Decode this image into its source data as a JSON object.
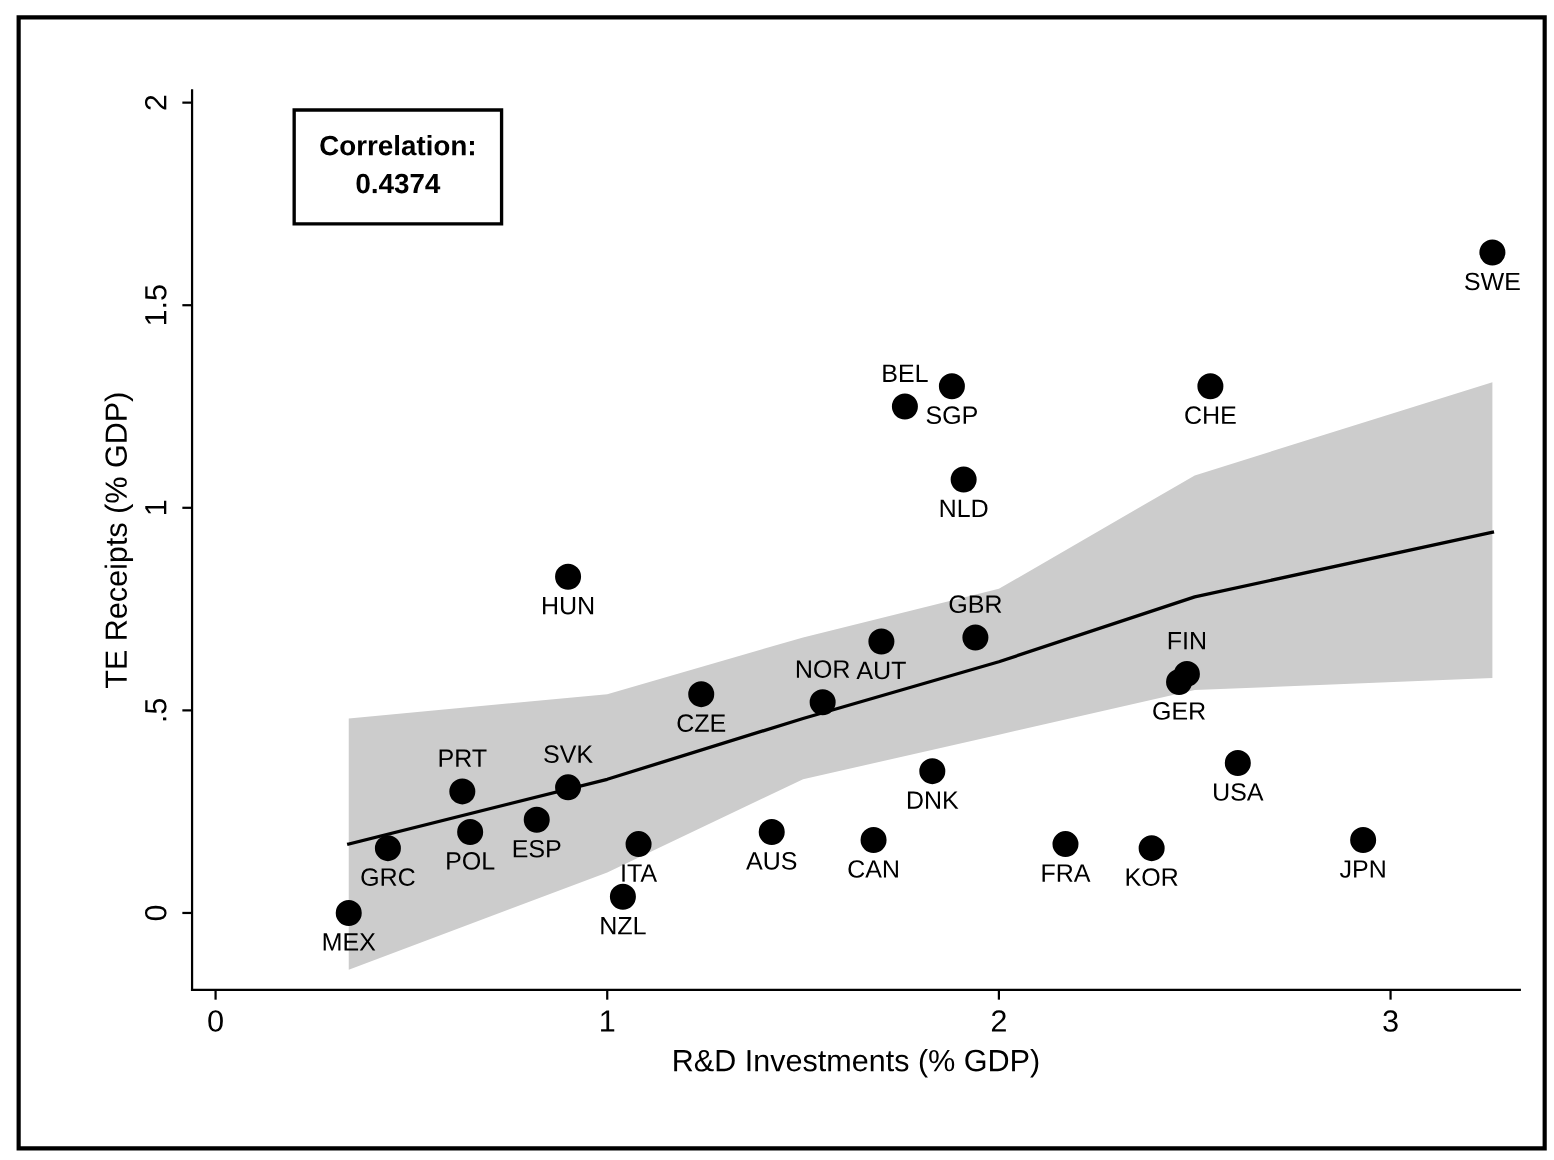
{
  "chart_data": {
    "type": "scatter",
    "xlabel": "R&D Investments (% GDP)",
    "ylabel": "TE Receipts (% GDP)",
    "annotations": [
      "Correlation:\n0.4374"
    ],
    "xlim": [
      -0.06,
      3.33
    ],
    "ylim": [
      -0.19,
      2.03
    ],
    "xticks": [
      0,
      1,
      2,
      3
    ],
    "yticks": [
      0,
      {
        "value": 0.5,
        "label": ".5"
      },
      1,
      1.5,
      2
    ],
    "grid": false,
    "legend": false,
    "marker": "circle",
    "series": [
      {
        "color": "#000000",
        "x": [
          0.34,
          0.44,
          0.63,
          0.65,
          0.82,
          0.9,
          0.9,
          1.08,
          1.04,
          1.24,
          1.42,
          1.55,
          1.68,
          1.7,
          1.94,
          1.83,
          1.88,
          1.76,
          1.91,
          2.54,
          3.26,
          2.46,
          2.48,
          2.61,
          2.17,
          2.39,
          2.93
        ],
        "values": [
          0.0,
          0.16,
          0.3,
          0.2,
          0.23,
          0.31,
          0.83,
          0.17,
          0.04,
          0.54,
          0.2,
          0.52,
          0.18,
          0.67,
          0.68,
          0.35,
          1.3,
          1.25,
          1.07,
          1.3,
          1.63,
          0.57,
          0.59,
          0.37,
          0.17,
          0.16,
          0.18
        ],
        "value_labels": [
          "MEX",
          "GRC",
          "PRT",
          "POL",
          "ESP",
          "SVK",
          "HUN",
          "ITA",
          "NZL",
          "CZE",
          "AUS",
          "NOR",
          "CAN",
          "AUT",
          "GBR",
          "DNK",
          "SGP",
          "BEL",
          "NLD",
          "CHE",
          "SWE",
          "GER",
          "FIN",
          "USA",
          "FRA",
          "KOR",
          "JPN"
        ]
      },
      {
        "type": "line",
        "color": "#000000",
        "line_style": "solid",
        "marker": "none",
        "x": [
          0.34,
          1,
          1.5,
          2,
          2.5,
          3.26
        ],
        "values": [
          0.17,
          0.33,
          0.48,
          0.62,
          0.78,
          0.94
        ],
        "lower": [
          -0.14,
          0.1,
          0.33,
          0.44,
          0.55,
          0.58
        ],
        "upper": [
          0.48,
          0.54,
          0.68,
          0.8,
          1.08,
          1.31
        ]
      }
    ]
  }
}
